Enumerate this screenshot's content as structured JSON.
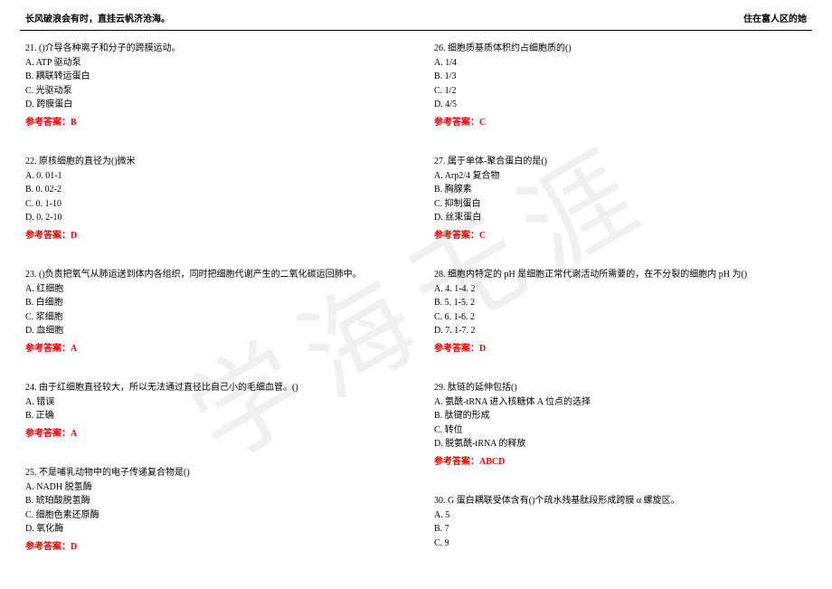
{
  "header": {
    "left": "长风破浪会有时，直挂云帆济沧海。",
    "right": "住在富人区的她"
  },
  "watermark": "学海无涯",
  "answer_label_prefix": "参考答案：",
  "left_column": [
    {
      "num": "21",
      "stem": "()介导各种离子和分子的跨膜运动。",
      "options": [
        "A. ATP 驱动泵",
        "B. 耦联转运蛋白",
        "C. 光驱动泵",
        "D. 跨膜蛋白"
      ],
      "answer": "B"
    },
    {
      "num": "22",
      "stem": "原核细胞的直径为()微米",
      "options": [
        "A. 0. 01-1",
        "B. 0. 02-2",
        "C. 0. 1-10",
        "D. 0. 2-10"
      ],
      "answer": "D"
    },
    {
      "num": "23",
      "stem": "()负责把氧气从肺运送到体内各组织，同时把细胞代谢产生的二氧化碳运回肺中。",
      "options": [
        "A. 红细胞",
        "B. 白细胞",
        "C. 浆细胞",
        "D. 血细胞"
      ],
      "answer": "A"
    },
    {
      "num": "24",
      "stem": "由于红细胞直径较大，所以无法通过直径比自己小的毛细血管。()",
      "options": [
        "A. 错误",
        "B. 正确"
      ],
      "answer": "A"
    },
    {
      "num": "25",
      "stem": "不是哺乳动物中的电子传递复合物是()",
      "options": [
        "A. NADH 脱氢酶",
        "B. 琥珀酸脱氢酶",
        "C. 细胞色素还原酶",
        "D. 氧化酶"
      ],
      "answer": "D"
    }
  ],
  "right_column": [
    {
      "num": "26",
      "stem": "细胞质基质体积约占细胞质的()",
      "options": [
        "A. 1/4",
        "B. 1/3",
        "C. 1/2",
        "D. 4/5"
      ],
      "answer": "C"
    },
    {
      "num": "27",
      "stem": "属于单体-聚合蛋白的是()",
      "options": [
        "A. Arp2/4 复合物",
        "B. 胸腺素",
        "C. 抑制蛋白",
        "D. 丝束蛋白"
      ],
      "answer": "C"
    },
    {
      "num": "28",
      "stem": "细胞内特定的 pH 是细胞正常代谢活动所需要的，在不分裂的细胞内 pH 为()",
      "options": [
        "A. 4. 1-4. 2",
        "B. 5. 1-5. 2",
        "C. 6. 1-6. 2",
        "D. 7. 1-7. 2"
      ],
      "answer": "D"
    },
    {
      "num": "29",
      "stem": "肽链的延伸包括()",
      "options": [
        "A. 氨酰-tRNA 进入核糖体 A 位点的选择",
        "B. 肽键的形成",
        "C. 转位",
        "D. 脱氨酰-tRNA 的释放"
      ],
      "answer": "ABCD"
    },
    {
      "num": "30",
      "stem": "G 蛋白耦联受体含有()个疏水残基肽段形成跨膜 α 螺旋区。",
      "options": [
        "A. 5",
        "B. 7",
        "C. 9"
      ],
      "answer": null
    }
  ]
}
